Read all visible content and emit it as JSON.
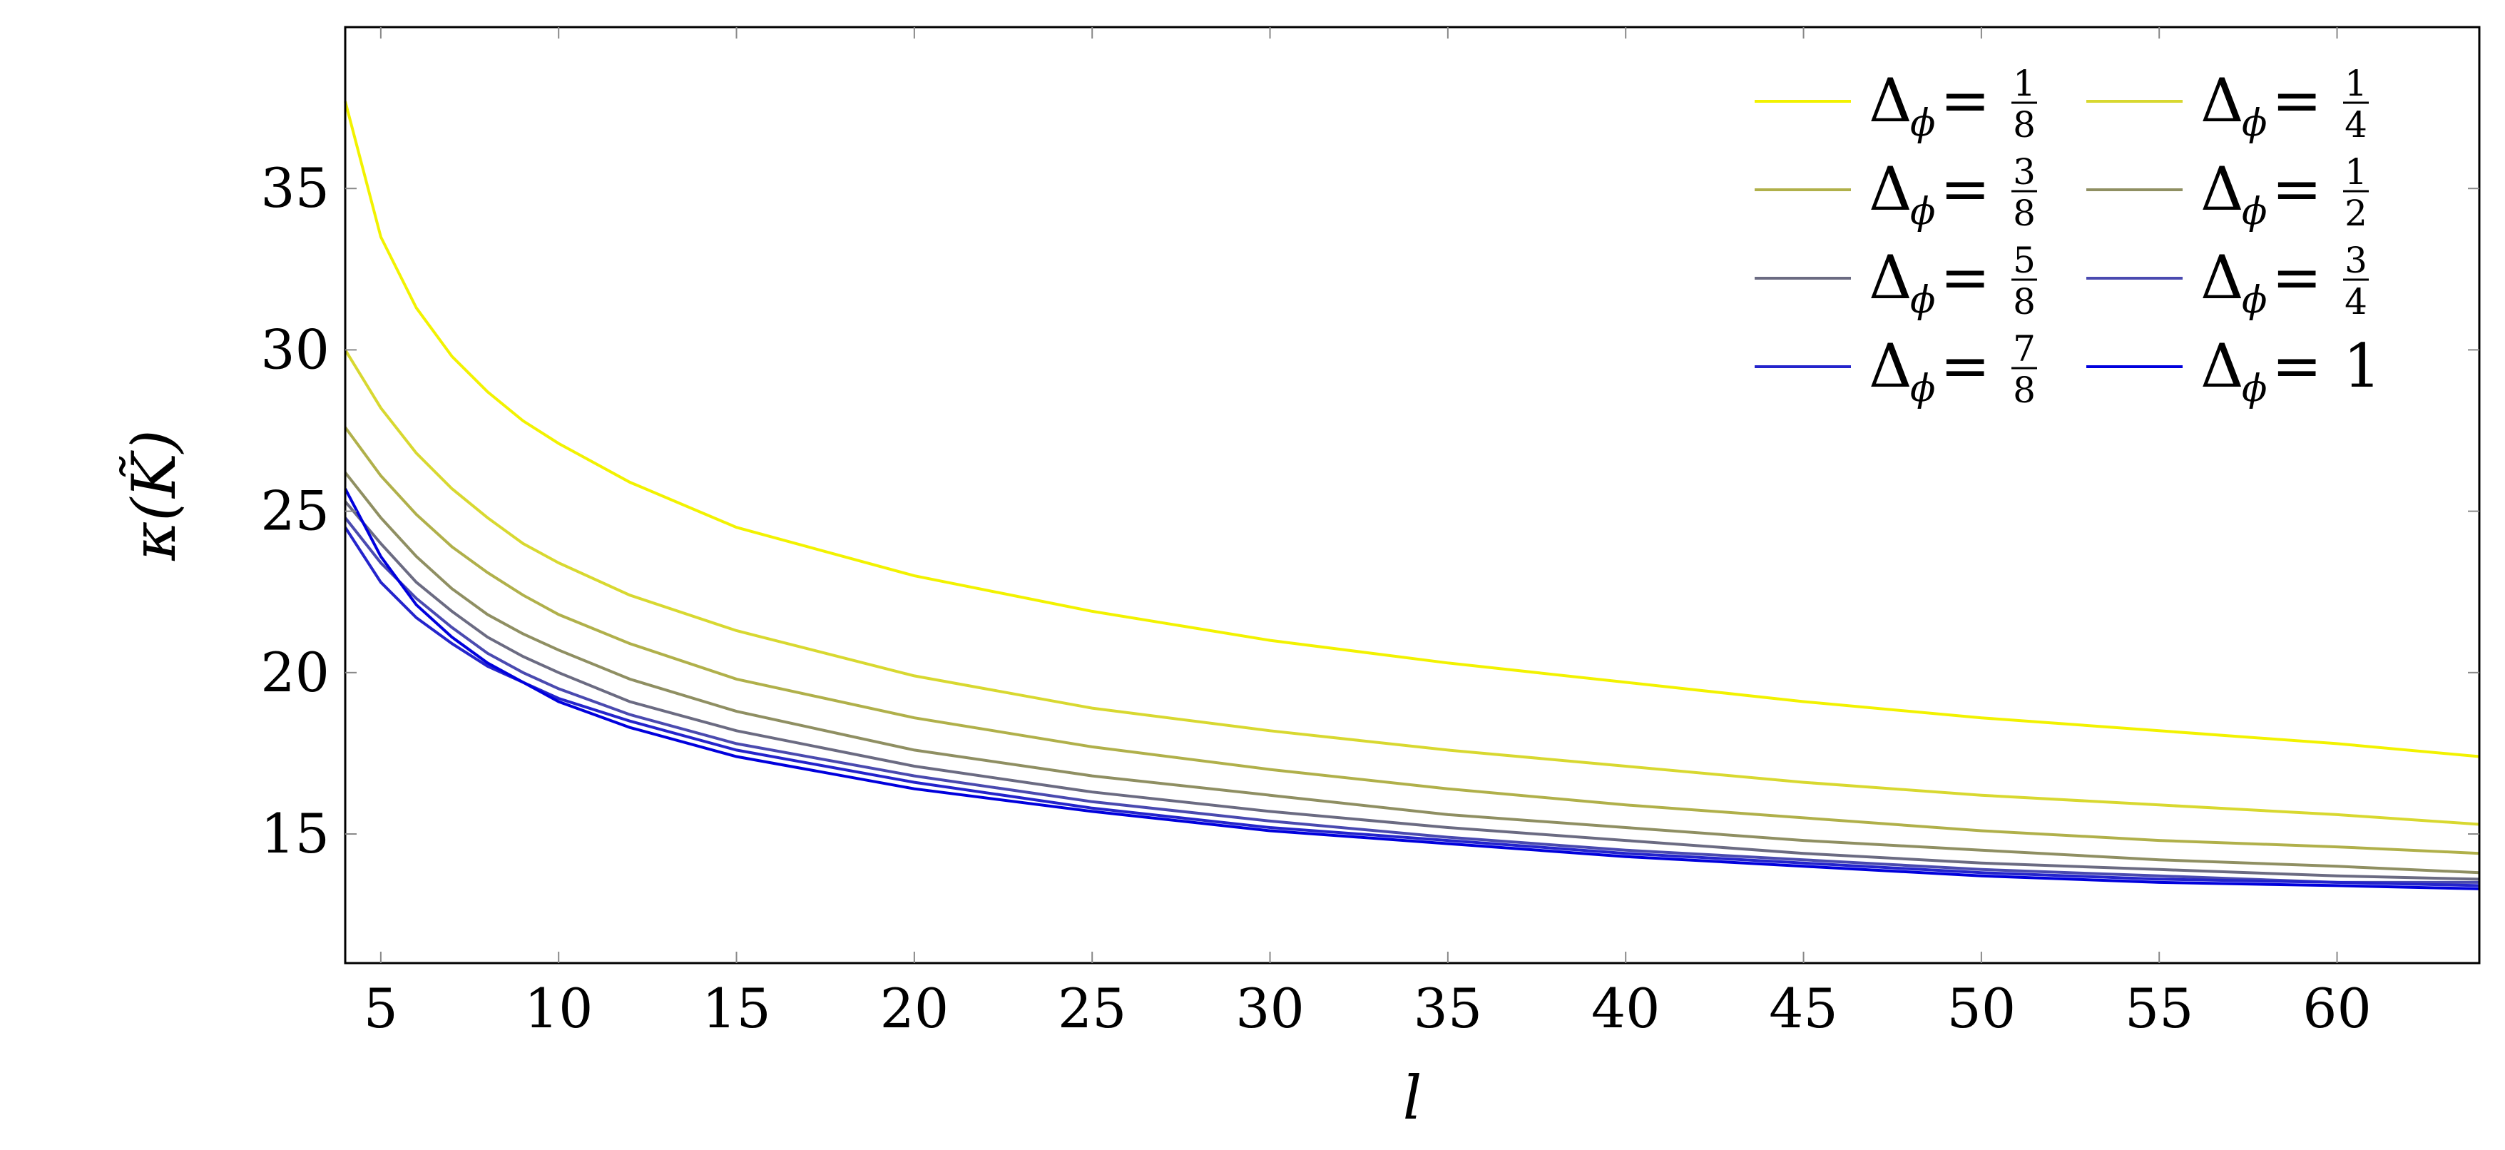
{
  "chart_data": {
    "type": "line",
    "title": "",
    "xlabel": "l",
    "ylabel": "κ(K̃)",
    "xlim": [
      4,
      64
    ],
    "ylim": [
      11,
      40
    ],
    "xticks": [
      5,
      10,
      15,
      20,
      25,
      30,
      35,
      40,
      45,
      50,
      55,
      60
    ],
    "yticks": [
      15,
      20,
      25,
      30,
      35
    ],
    "grid": false,
    "legend": {
      "placement": "top-right",
      "columns": 2
    },
    "x": [
      4,
      5,
      6,
      7,
      8,
      9,
      10,
      12,
      15,
      20,
      25,
      30,
      35,
      40,
      45,
      50,
      55,
      60,
      64
    ],
    "series": [
      {
        "name": "Δϕ = 1/8",
        "frac": "1/8",
        "color": "#f2f200",
        "values": [
          37.7,
          33.5,
          31.3,
          29.8,
          28.7,
          27.8,
          27.1,
          25.9,
          24.5,
          23.0,
          21.9,
          21.0,
          20.3,
          19.7,
          19.1,
          18.6,
          18.2,
          17.8,
          17.4
        ]
      },
      {
        "name": "Δϕ = 1/4",
        "frac": "1/4",
        "color": "#d8d830",
        "values": [
          30.0,
          28.2,
          26.8,
          25.7,
          24.8,
          24.0,
          23.4,
          22.4,
          21.3,
          19.9,
          18.9,
          18.2,
          17.6,
          17.1,
          16.6,
          16.2,
          15.9,
          15.6,
          15.3
        ]
      },
      {
        "name": "Δϕ = 3/8",
        "frac": "3/8",
        "color": "#b0b04a",
        "values": [
          27.6,
          26.1,
          24.9,
          23.9,
          23.1,
          22.4,
          21.8,
          20.9,
          19.8,
          18.6,
          17.7,
          17.0,
          16.4,
          15.9,
          15.5,
          15.1,
          14.8,
          14.6,
          14.4
        ]
      },
      {
        "name": "Δϕ = 1/2",
        "frac": "1/2",
        "color": "#8f8f62",
        "values": [
          26.2,
          24.8,
          23.6,
          22.6,
          21.8,
          21.2,
          20.7,
          19.8,
          18.8,
          17.6,
          16.8,
          16.2,
          15.6,
          15.2,
          14.8,
          14.5,
          14.2,
          14.0,
          13.8
        ]
      },
      {
        "name": "Δϕ = 5/8",
        "frac": "5/8",
        "color": "#6b6b82",
        "values": [
          25.3,
          24.0,
          22.8,
          21.9,
          21.1,
          20.5,
          20.0,
          19.1,
          18.2,
          17.1,
          16.3,
          15.7,
          15.2,
          14.8,
          14.4,
          14.1,
          13.9,
          13.7,
          13.6
        ]
      },
      {
        "name": "Δϕ = 3/4",
        "frac": "3/4",
        "color": "#4a4ab0",
        "values": [
          24.8,
          23.4,
          22.3,
          21.4,
          20.6,
          20.0,
          19.5,
          18.7,
          17.8,
          16.8,
          16.0,
          15.4,
          14.9,
          14.5,
          14.2,
          13.9,
          13.7,
          13.5,
          13.5
        ]
      },
      {
        "name": "Δϕ = 7/8",
        "frac": "7/8",
        "color": "#2424cc",
        "values": [
          24.5,
          22.8,
          21.7,
          20.9,
          20.2,
          19.7,
          19.2,
          18.5,
          17.6,
          16.6,
          15.8,
          15.2,
          14.8,
          14.4,
          14.1,
          13.8,
          13.6,
          13.5,
          13.4
        ]
      },
      {
        "name": "Δϕ = 1",
        "frac": "1",
        "color": "#0000dd",
        "values": [
          25.7,
          23.6,
          22.1,
          21.1,
          20.3,
          19.7,
          19.1,
          18.3,
          17.4,
          16.4,
          15.7,
          15.1,
          14.7,
          14.3,
          14.0,
          13.7,
          13.5,
          13.4,
          13.3
        ]
      }
    ]
  }
}
